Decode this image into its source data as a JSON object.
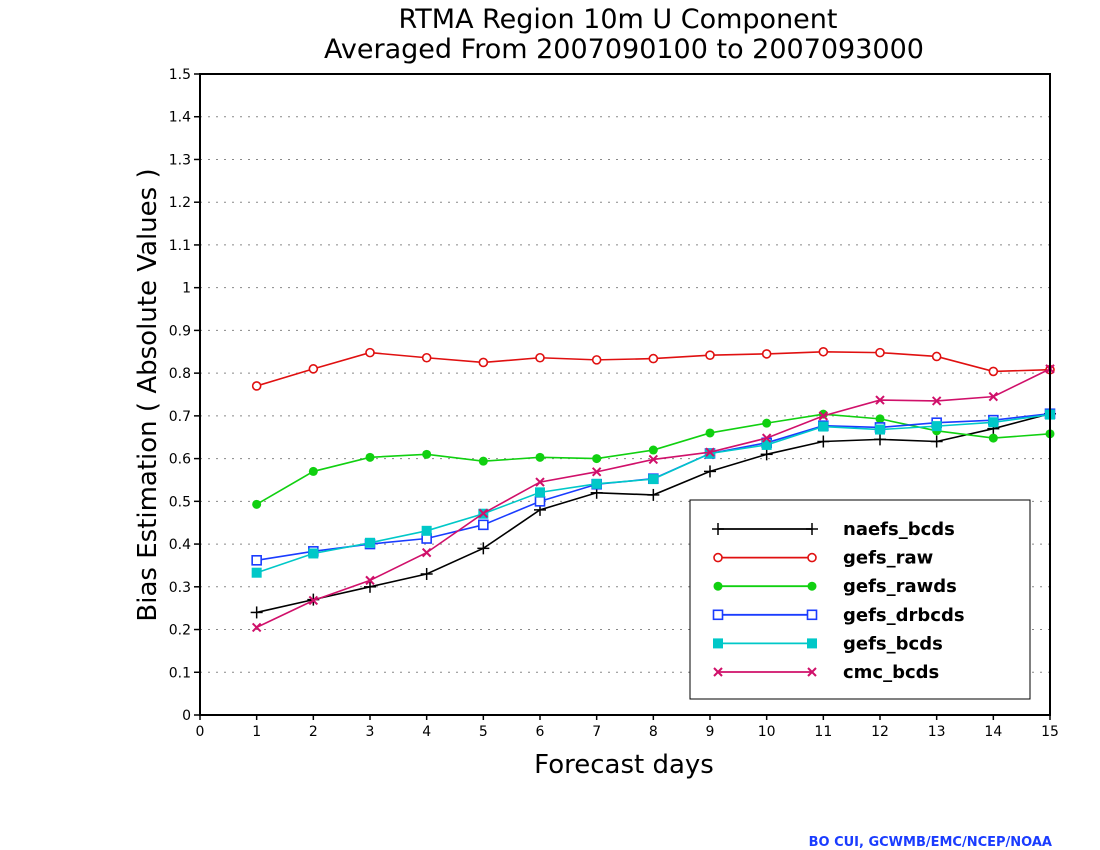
{
  "chart_data": {
    "type": "line",
    "title": "RTMA Region 10m U Component",
    "subtitle": "Averaged From 2007090100 to 2007093000",
    "xlabel": "Forecast days",
    "ylabel": "Bias Estimation ( Absolute Values )",
    "xlim": [
      0,
      15
    ],
    "ylim": [
      0,
      1.5
    ],
    "x_ticks": [
      "0",
      "1",
      "2",
      "3",
      "4",
      "5",
      "6",
      "7",
      "8",
      "9",
      "10",
      "11",
      "12",
      "13",
      "14",
      "15"
    ],
    "y_ticks": [
      "0",
      "0.1",
      "0.2",
      "0.3",
      "0.4",
      "0.5",
      "0.6",
      "0.7",
      "0.8",
      "0.9",
      "1",
      "1.1",
      "1.2",
      "1.3",
      "1.4",
      "1.5"
    ],
    "grid": "horizontal dotted",
    "legend_position": "bottom-right",
    "x": [
      1,
      2,
      3,
      4,
      5,
      6,
      7,
      8,
      9,
      10,
      11,
      12,
      13,
      14,
      15
    ],
    "series": [
      {
        "name": "naefs_bcds",
        "color": "#000000",
        "marker": "plus",
        "values": [
          0.24,
          0.27,
          0.3,
          0.33,
          0.39,
          0.48,
          0.52,
          0.515,
          0.57,
          0.61,
          0.64,
          0.645,
          0.64,
          0.67,
          0.705
        ]
      },
      {
        "name": "gefs_raw",
        "color": "#e01010",
        "marker": "open-circle",
        "values": [
          0.77,
          0.81,
          0.848,
          0.836,
          0.825,
          0.836,
          0.831,
          0.834,
          0.842,
          0.845,
          0.85,
          0.848,
          0.839,
          0.804,
          0.808
        ]
      },
      {
        "name": "gefs_rawds",
        "color": "#10d010",
        "marker": "filled-circle",
        "values": [
          0.493,
          0.57,
          0.603,
          0.61,
          0.594,
          0.603,
          0.6,
          0.62,
          0.66,
          0.683,
          0.704,
          0.693,
          0.665,
          0.648,
          0.658
        ]
      },
      {
        "name": "gefs_drbcds",
        "color": "#1a3cff",
        "marker": "open-square",
        "values": [
          0.362,
          0.383,
          0.4,
          0.413,
          0.445,
          0.5,
          0.54,
          0.553,
          0.612,
          0.637,
          0.677,
          0.673,
          0.684,
          0.69,
          0.705
        ]
      },
      {
        "name": "gefs_bcds",
        "color": "#00c8c8",
        "marker": "filled-square",
        "values": [
          0.333,
          0.378,
          0.403,
          0.431,
          0.471,
          0.521,
          0.541,
          0.552,
          0.612,
          0.632,
          0.675,
          0.668,
          0.676,
          0.685,
          0.703
        ]
      },
      {
        "name": "cmc_bcds",
        "color": "#d0106a",
        "marker": "cross",
        "values": [
          0.205,
          0.268,
          0.315,
          0.38,
          0.472,
          0.545,
          0.569,
          0.598,
          0.615,
          0.648,
          0.7,
          0.737,
          0.735,
          0.745,
          0.81
        ]
      }
    ]
  },
  "credit": "BO CUI, GCWMB/EMC/NCEP/NOAA"
}
